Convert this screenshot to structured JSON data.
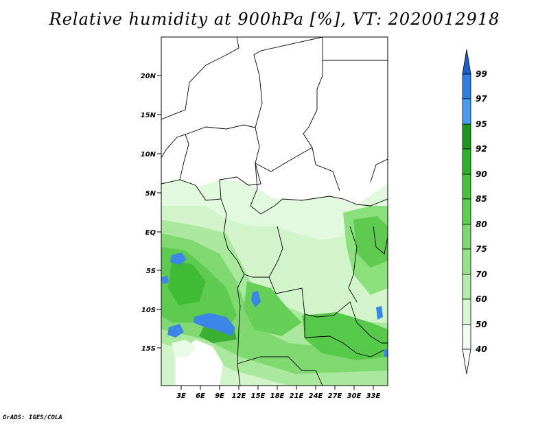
{
  "title": "Relative humidity at 900hPa [%], VT: 2020012918",
  "footer": "GrADS: IGES/COLA",
  "map": {
    "lat_labels": [
      "20N",
      "15N",
      "10N",
      "5N",
      "EQ",
      "5S",
      "10S",
      "15S"
    ],
    "lon_labels": [
      "3E",
      "6E",
      "9E",
      "12E",
      "15E",
      "18E",
      "21E",
      "24E",
      "27E",
      "30E",
      "33E"
    ]
  },
  "colorbar": {
    "levels": [
      "40",
      "50",
      "60",
      "70",
      "75",
      "80",
      "85",
      "90",
      "92",
      "95",
      "97",
      "99"
    ],
    "colors": [
      "#f0fff0",
      "#d7f7d2",
      "#b4edaa",
      "#96e38a",
      "#7cd96d",
      "#5fcf52",
      "#44c23b",
      "#30b02c",
      "#1e9620",
      "#4a9cf0",
      "#2f7fe0",
      "#1f5fc8"
    ]
  }
}
